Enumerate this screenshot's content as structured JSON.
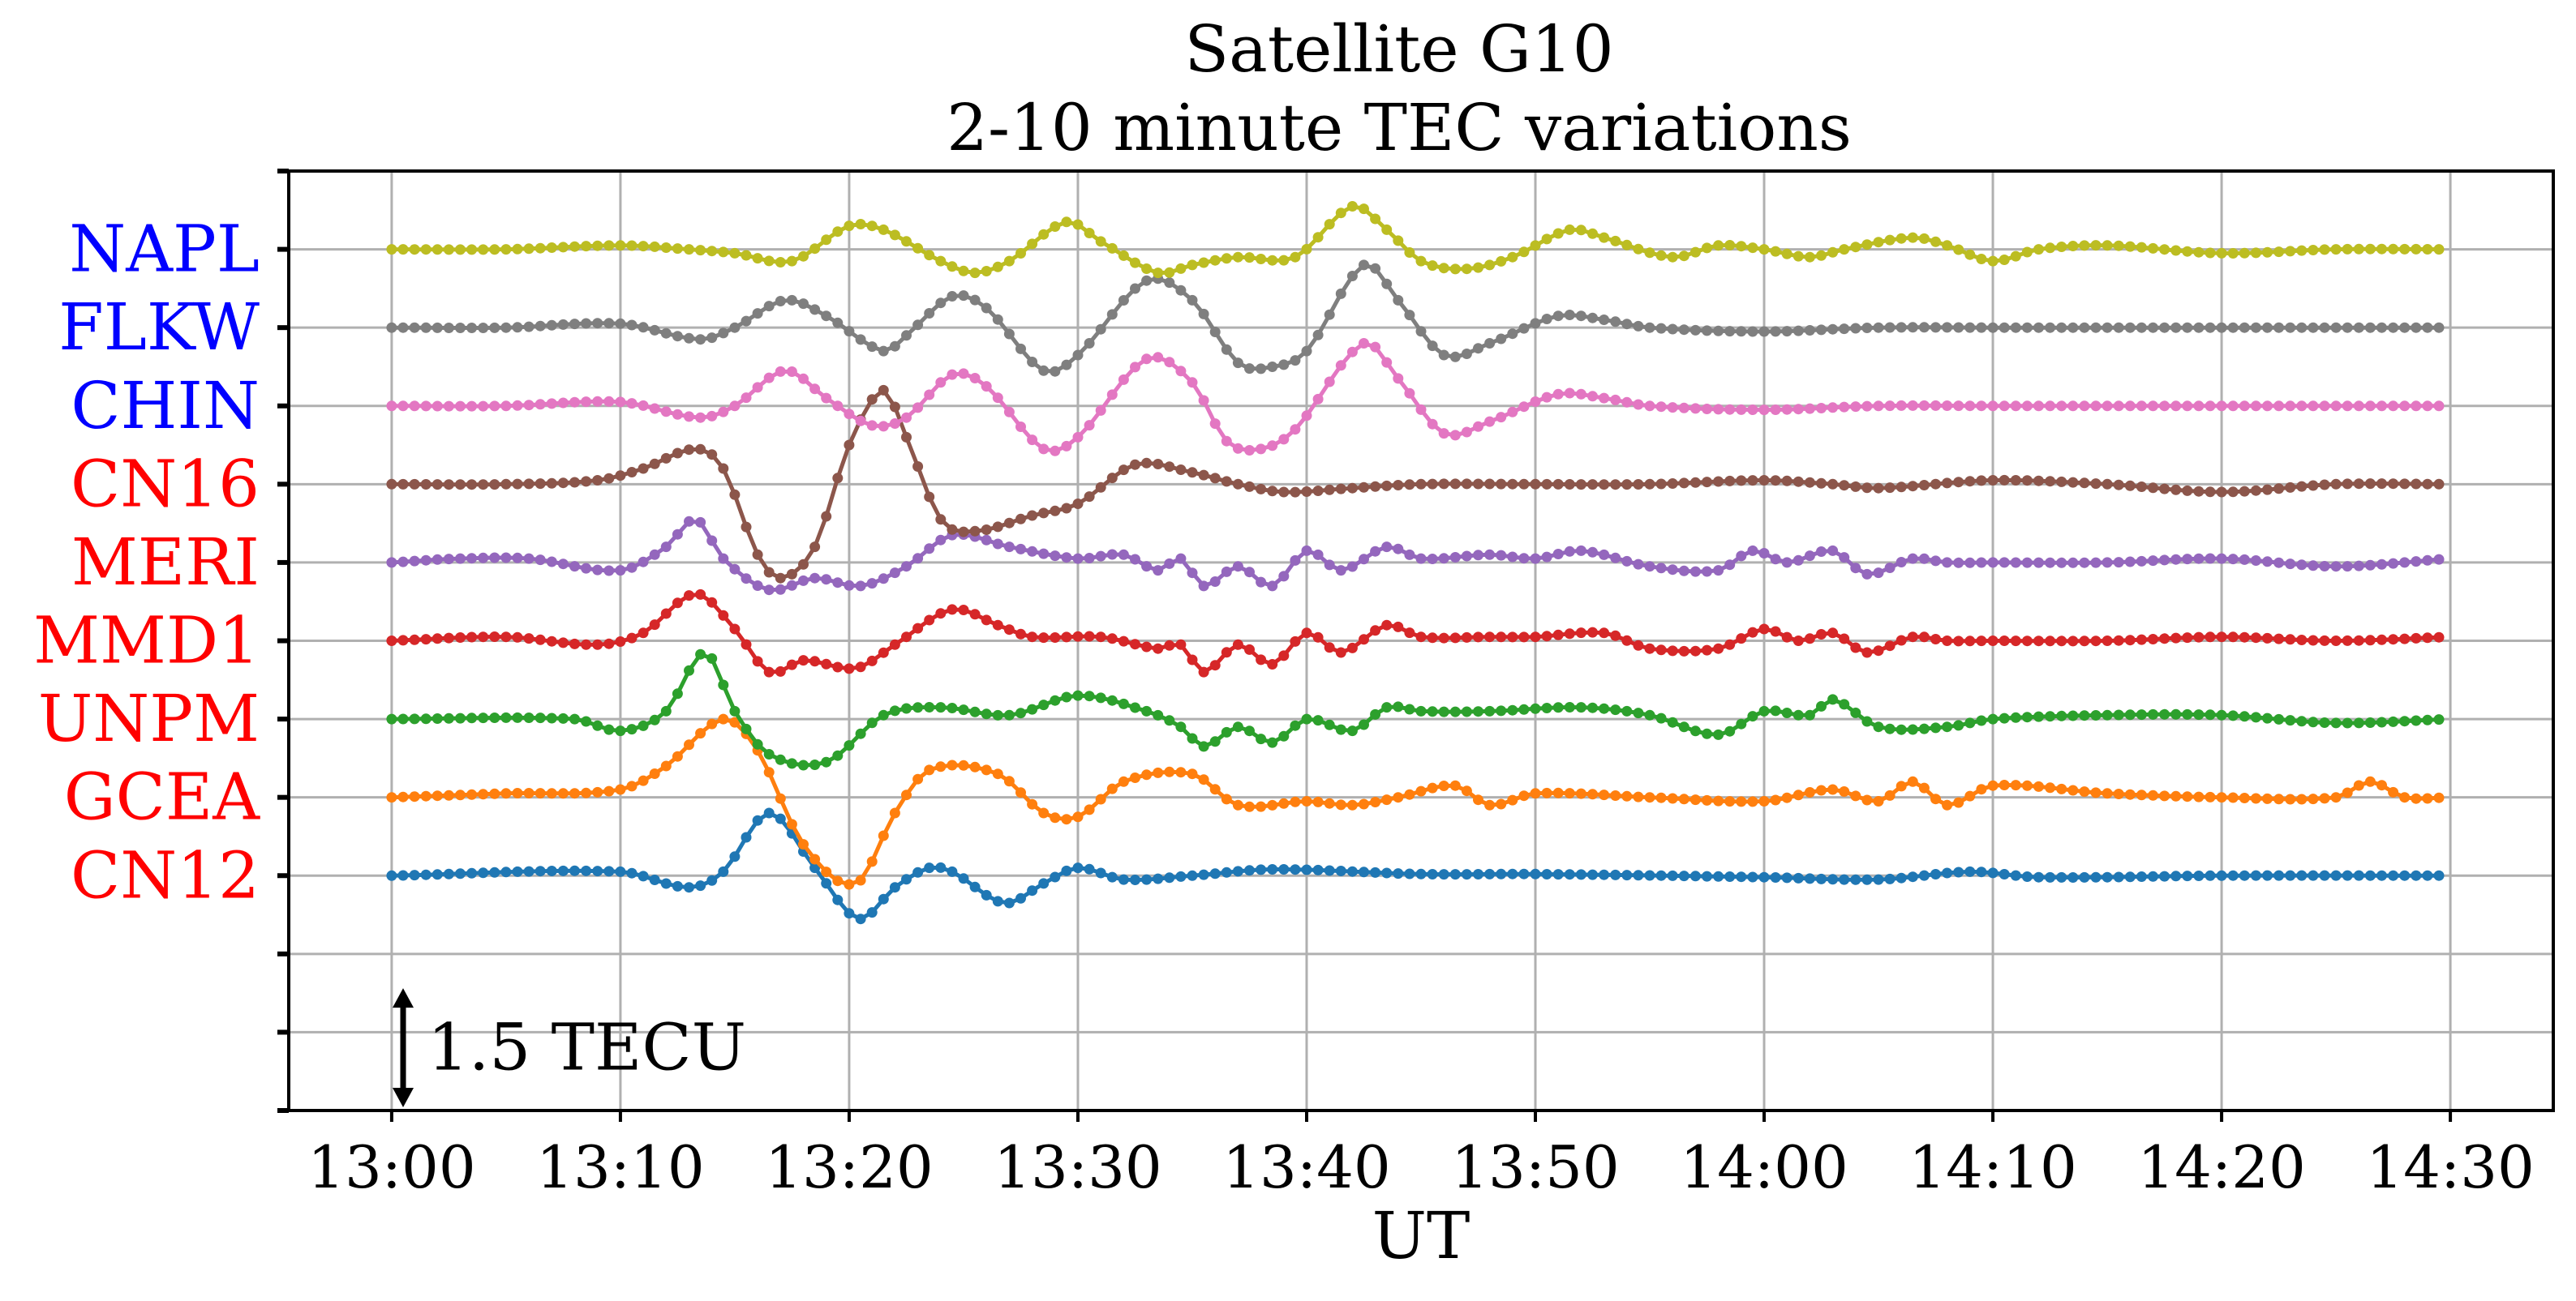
{
  "chart_data": {
    "type": "line",
    "title": "Satellite G10",
    "subtitle": "2-10 minute TEC variations",
    "xlabel": "UT",
    "ylabel": "",
    "x_tick_labels": [
      "13:00",
      "13:10",
      "13:20",
      "13:30",
      "13:40",
      "13:50",
      "14:00",
      "14:10",
      "14:20",
      "14:30"
    ],
    "x_tick_values": [
      0,
      10,
      20,
      30,
      40,
      50,
      60,
      70,
      80,
      90
    ],
    "xlim": [
      -4.5,
      94.5
    ],
    "ylim": [
      -1,
      11
    ],
    "grid": true,
    "scale_bar": {
      "label": "1.5 TECU",
      "value": 1.5,
      "at_minutes": 0.5
    },
    "series": [
      {
        "name": "CN12",
        "baseline": 2,
        "color": "#1f77b4",
        "label_color": "#ff0000",
        "points": [
          [
            0,
            0
          ],
          [
            10,
            0.05
          ],
          [
            13,
            -0.15
          ],
          [
            14.5,
            0.05
          ],
          [
            16.5,
            0.8
          ],
          [
            18.5,
            0.1
          ],
          [
            20.4,
            -0.55
          ],
          [
            22,
            -0.15
          ],
          [
            23.5,
            0.1
          ],
          [
            24.5,
            0.05
          ],
          [
            26.8,
            -0.35
          ],
          [
            28.5,
            -0.1
          ],
          [
            30,
            0.1
          ],
          [
            32,
            -0.05
          ],
          [
            35,
            0
          ],
          [
            38.5,
            0.08
          ],
          [
            45,
            0.02
          ],
          [
            50,
            0.02
          ],
          [
            60,
            -0.02
          ],
          [
            65,
            -0.05
          ],
          [
            69,
            0.05
          ],
          [
            72,
            -0.02
          ],
          [
            80,
            0
          ],
          [
            90,
            0
          ]
        ]
      },
      {
        "name": "GCEA",
        "baseline": 3,
        "color": "#ff7f0e",
        "label_color": "#ff0000",
        "points": [
          [
            0,
            0
          ],
          [
            5,
            0.05
          ],
          [
            10,
            0.1
          ],
          [
            12,
            0.4
          ],
          [
            14.5,
            1.0
          ],
          [
            16,
            0.6
          ],
          [
            18,
            -0.6
          ],
          [
            20.3,
            -1.1
          ],
          [
            22,
            -0.2
          ],
          [
            23.5,
            0.35
          ],
          [
            26.5,
            0.3
          ],
          [
            28.5,
            -0.2
          ],
          [
            30,
            -0.25
          ],
          [
            32,
            0.2
          ],
          [
            35,
            0.3
          ],
          [
            37,
            -0.1
          ],
          [
            40,
            -0.05
          ],
          [
            42,
            -0.1
          ],
          [
            44,
            0
          ],
          [
            46.5,
            0.15
          ],
          [
            48,
            -0.1
          ],
          [
            50,
            0.05
          ],
          [
            55,
            0
          ],
          [
            60,
            -0.05
          ],
          [
            63,
            0.1
          ],
          [
            65,
            -0.05
          ],
          [
            66.5,
            0.2
          ],
          [
            68,
            -0.1
          ],
          [
            70,
            0.15
          ],
          [
            75,
            0.05
          ],
          [
            80,
            0
          ],
          [
            85,
            0
          ],
          [
            86.5,
            0.2
          ],
          [
            88,
            0
          ],
          [
            90,
            0
          ]
        ]
      },
      {
        "name": "UNPM",
        "baseline": 4,
        "color": "#2ca02c",
        "label_color": "#ff0000",
        "points": [
          [
            0,
            0
          ],
          [
            8,
            0
          ],
          [
            10,
            -0.15
          ],
          [
            12,
            0.1
          ],
          [
            13.7,
            0.85
          ],
          [
            15,
            0.1
          ],
          [
            16.5,
            -0.45
          ],
          [
            19,
            -0.55
          ],
          [
            21.5,
            0.05
          ],
          [
            24,
            0.15
          ],
          [
            27,
            0.05
          ],
          [
            30,
            0.3
          ],
          [
            33,
            0.1
          ],
          [
            34.5,
            -0.1
          ],
          [
            35.5,
            -0.35
          ],
          [
            37,
            -0.1
          ],
          [
            38.5,
            -0.3
          ],
          [
            40,
            0
          ],
          [
            42,
            -0.15
          ],
          [
            43.5,
            0.15
          ],
          [
            45,
            0.1
          ],
          [
            48,
            0.1
          ],
          [
            52,
            0.15
          ],
          [
            55,
            0.05
          ],
          [
            58,
            -0.2
          ],
          [
            60,
            0.1
          ],
          [
            62,
            0.05
          ],
          [
            63,
            0.25
          ],
          [
            65,
            -0.1
          ],
          [
            68,
            -0.1
          ],
          [
            70,
            0
          ],
          [
            75,
            0.05
          ],
          [
            80,
            0.05
          ],
          [
            85,
            -0.05
          ],
          [
            90,
            0
          ]
        ]
      },
      {
        "name": "MMD1",
        "baseline": 5,
        "color": "#d62728",
        "label_color": "#ff0000",
        "points": [
          [
            0,
            0
          ],
          [
            5,
            0.05
          ],
          [
            9,
            -0.05
          ],
          [
            11,
            0.1
          ],
          [
            13.3,
            0.6
          ],
          [
            15,
            0.15
          ],
          [
            16.5,
            -0.4
          ],
          [
            18,
            -0.25
          ],
          [
            20.3,
            -0.35
          ],
          [
            22,
            -0.05
          ],
          [
            24.5,
            0.4
          ],
          [
            26.5,
            0.2
          ],
          [
            28,
            0.05
          ],
          [
            31,
            0.05
          ],
          [
            33.5,
            -0.1
          ],
          [
            34.5,
            -0.05
          ],
          [
            35.5,
            -0.4
          ],
          [
            37,
            -0.05
          ],
          [
            38.5,
            -0.3
          ],
          [
            40,
            0.1
          ],
          [
            41.5,
            -0.15
          ],
          [
            43.5,
            0.2
          ],
          [
            45,
            0.05
          ],
          [
            48,
            0.05
          ],
          [
            50,
            0.05
          ],
          [
            53,
            0.1
          ],
          [
            55,
            -0.1
          ],
          [
            58,
            -0.1
          ],
          [
            60,
            0.15
          ],
          [
            61.5,
            0
          ],
          [
            63,
            0.1
          ],
          [
            64.5,
            -0.15
          ],
          [
            66.5,
            0.05
          ],
          [
            68,
            0
          ],
          [
            70,
            0
          ],
          [
            75,
            0
          ],
          [
            80,
            0.05
          ],
          [
            85,
            0
          ],
          [
            90,
            0.05
          ]
        ]
      },
      {
        "name": "MERI",
        "baseline": 6,
        "color": "#9467bd",
        "label_color": "#ff0000",
        "points": [
          [
            0,
            0
          ],
          [
            3,
            0.05
          ],
          [
            6,
            0.05
          ],
          [
            10,
            -0.1
          ],
          [
            12,
            0.2
          ],
          [
            13.3,
            0.55
          ],
          [
            14.5,
            0.05
          ],
          [
            16.5,
            -0.35
          ],
          [
            18.5,
            -0.2
          ],
          [
            20.5,
            -0.3
          ],
          [
            22.5,
            -0.05
          ],
          [
            24.5,
            0.35
          ],
          [
            27,
            0.2
          ],
          [
            30,
            0.05
          ],
          [
            32,
            0.1
          ],
          [
            33.5,
            -0.1
          ],
          [
            34.5,
            0.05
          ],
          [
            35.5,
            -0.3
          ],
          [
            37,
            -0.05
          ],
          [
            38.5,
            -0.3
          ],
          [
            40,
            0.15
          ],
          [
            41.5,
            -0.1
          ],
          [
            43.5,
            0.2
          ],
          [
            45,
            0.05
          ],
          [
            48,
            0.1
          ],
          [
            50,
            0.05
          ],
          [
            52,
            0.15
          ],
          [
            55,
            -0.05
          ],
          [
            58,
            -0.1
          ],
          [
            59.5,
            0.15
          ],
          [
            61,
            0
          ],
          [
            63,
            0.15
          ],
          [
            64.5,
            -0.15
          ],
          [
            66.5,
            0.05
          ],
          [
            68,
            0
          ],
          [
            70,
            0
          ],
          [
            75,
            0
          ],
          [
            80,
            0.05
          ],
          [
            85,
            -0.05
          ],
          [
            90,
            0.05
          ]
        ]
      },
      {
        "name": "CN16",
        "baseline": 7,
        "color": "#8c564b",
        "label_color": "#ff0000",
        "points": [
          [
            0,
            0
          ],
          [
            5,
            0
          ],
          [
            9,
            0.05
          ],
          [
            11,
            0.2
          ],
          [
            13.3,
            0.45
          ],
          [
            14.5,
            0.2
          ],
          [
            16,
            -0.9
          ],
          [
            17,
            -1.2
          ],
          [
            18.5,
            -0.8
          ],
          [
            20,
            0.5
          ],
          [
            21.5,
            1.2
          ],
          [
            22.5,
            0.6
          ],
          [
            24,
            -0.45
          ],
          [
            25.5,
            -0.6
          ],
          [
            28,
            -0.4
          ],
          [
            30,
            -0.25
          ],
          [
            32.5,
            0.25
          ],
          [
            35,
            0.15
          ],
          [
            37,
            0
          ],
          [
            39,
            -0.1
          ],
          [
            42,
            -0.05
          ],
          [
            45,
            0
          ],
          [
            50,
            0
          ],
          [
            55,
            0
          ],
          [
            60,
            0.05
          ],
          [
            63,
            0
          ],
          [
            65,
            -0.05
          ],
          [
            70,
            0.05
          ],
          [
            75,
            0
          ],
          [
            80,
            -0.1
          ],
          [
            85,
            0
          ],
          [
            90,
            0
          ]
        ]
      },
      {
        "name": "CHIN",
        "baseline": 8,
        "color": "#e377c2",
        "label_color": "#0000ff",
        "points": [
          [
            0,
            0
          ],
          [
            5,
            0
          ],
          [
            10,
            0.05
          ],
          [
            13.5,
            -0.15
          ],
          [
            15,
            0
          ],
          [
            17.2,
            0.45
          ],
          [
            19,
            0.1
          ],
          [
            21,
            -0.25
          ],
          [
            22.5,
            -0.15
          ],
          [
            24.5,
            0.4
          ],
          [
            26,
            0.25
          ],
          [
            28.5,
            -0.55
          ],
          [
            30,
            -0.4
          ],
          [
            33,
            0.6
          ],
          [
            35,
            0.3
          ],
          [
            36.5,
            -0.45
          ],
          [
            38,
            -0.55
          ],
          [
            39.5,
            -0.3
          ],
          [
            42.5,
            0.8
          ],
          [
            44,
            0.35
          ],
          [
            46,
            -0.35
          ],
          [
            48,
            -0.2
          ],
          [
            51,
            0.15
          ],
          [
            53,
            0.1
          ],
          [
            55,
            0
          ],
          [
            60,
            -0.05
          ],
          [
            65,
            0
          ],
          [
            70,
            0
          ],
          [
            75,
            0
          ],
          [
            80,
            0
          ],
          [
            85,
            0
          ],
          [
            90,
            0
          ]
        ]
      },
      {
        "name": "FLKW",
        "baseline": 9,
        "color": "#7f7f7f",
        "label_color": "#0000ff",
        "points": [
          [
            0,
            0
          ],
          [
            5,
            0
          ],
          [
            10,
            0.05
          ],
          [
            13.5,
            -0.15
          ],
          [
            15,
            0
          ],
          [
            17.2,
            0.35
          ],
          [
            19,
            0.15
          ],
          [
            21.5,
            -0.3
          ],
          [
            22.5,
            -0.1
          ],
          [
            24.5,
            0.4
          ],
          [
            26,
            0.25
          ],
          [
            28.5,
            -0.55
          ],
          [
            30,
            -0.35
          ],
          [
            33,
            0.6
          ],
          [
            35,
            0.35
          ],
          [
            37,
            -0.45
          ],
          [
            38.5,
            -0.5
          ],
          [
            40,
            -0.3
          ],
          [
            42.5,
            0.8
          ],
          [
            44,
            0.35
          ],
          [
            46,
            -0.35
          ],
          [
            48,
            -0.2
          ],
          [
            51,
            0.15
          ],
          [
            53,
            0.1
          ],
          [
            55,
            0
          ],
          [
            60,
            -0.05
          ],
          [
            65,
            0
          ],
          [
            70,
            0
          ],
          [
            75,
            0
          ],
          [
            80,
            0
          ],
          [
            85,
            0
          ],
          [
            90,
            0
          ]
        ]
      },
      {
        "name": "NAPL",
        "baseline": 10,
        "color": "#bcbd22",
        "label_color": "#0000ff",
        "points": [
          [
            0,
            0
          ],
          [
            5,
            0
          ],
          [
            10,
            0.05
          ],
          [
            13,
            0
          ],
          [
            15,
            -0.05
          ],
          [
            17.5,
            -0.15
          ],
          [
            20,
            0.3
          ],
          [
            21.5,
            0.25
          ],
          [
            24,
            -0.15
          ],
          [
            25.5,
            -0.3
          ],
          [
            27,
            -0.15
          ],
          [
            29.5,
            0.35
          ],
          [
            31,
            0.1
          ],
          [
            33.5,
            -0.3
          ],
          [
            35,
            -0.2
          ],
          [
            37,
            -0.1
          ],
          [
            39.5,
            -0.1
          ],
          [
            42,
            0.55
          ],
          [
            43.5,
            0.25
          ],
          [
            45,
            -0.15
          ],
          [
            47,
            -0.25
          ],
          [
            49,
            -0.1
          ],
          [
            51.5,
            0.25
          ],
          [
            53,
            0.15
          ],
          [
            56,
            -0.1
          ],
          [
            58,
            0.05
          ],
          [
            60,
            0
          ],
          [
            62,
            -0.1
          ],
          [
            63.5,
            0
          ],
          [
            66.5,
            0.15
          ],
          [
            68,
            0.05
          ],
          [
            70,
            -0.15
          ],
          [
            72,
            0
          ],
          [
            75,
            0.05
          ],
          [
            80,
            -0.05
          ],
          [
            85,
            0
          ],
          [
            90,
            0
          ]
        ]
      }
    ]
  }
}
